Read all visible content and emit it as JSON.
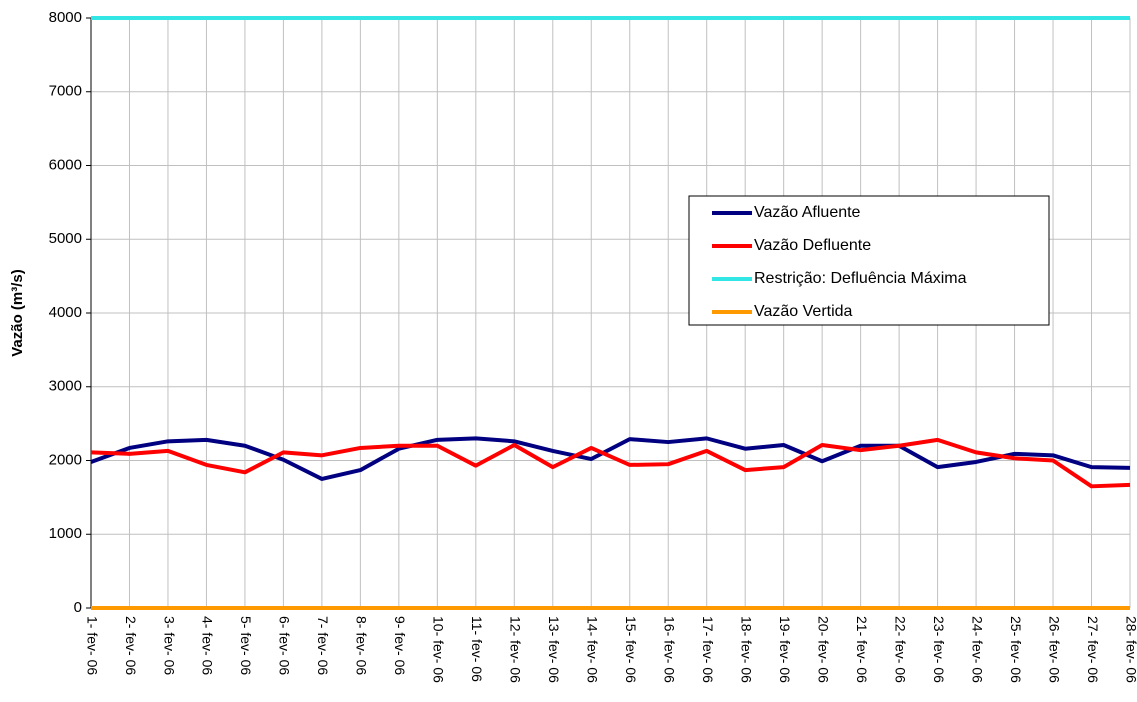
{
  "chart_data": {
    "type": "line",
    "ylabel": "Vazão (m³/s)",
    "categories": [
      "1- fev- 06",
      "2- fev- 06",
      "3- fev- 06",
      "4- fev- 06",
      "5- fev- 06",
      "6- fev- 06",
      "7- fev- 06",
      "8- fev- 06",
      "9- fev- 06",
      "10- fev- 06",
      "11- fev- 06",
      "12- fev- 06",
      "13- fev- 06",
      "14- fev- 06",
      "15- fev- 06",
      "16- fev- 06",
      "17- fev- 06",
      "18- fev- 06",
      "19- fev- 06",
      "20- fev- 06",
      "21- fev- 06",
      "22- fev- 06",
      "23- fev- 06",
      "24- fev- 06",
      "25- fev- 06",
      "26- fev- 06",
      "27- fev- 06",
      "28- fev- 06"
    ],
    "series": [
      {
        "name": "Vazão Afluente",
        "color": "#000080",
        "values": [
          1980,
          2170,
          2260,
          2280,
          2200,
          2010,
          1750,
          1870,
          2160,
          2280,
          2300,
          2260,
          2130,
          2020,
          2290,
          2250,
          2300,
          2160,
          2210,
          1990,
          2200,
          2200,
          1910,
          1980,
          2090,
          2070,
          1910,
          1900
        ]
      },
      {
        "name": "Vazão Defluente",
        "color": "#ff0000",
        "values": [
          2110,
          2090,
          2130,
          1940,
          1840,
          2110,
          2070,
          2170,
          2200,
          2200,
          1930,
          2210,
          1910,
          2170,
          1940,
          1950,
          2130,
          1870,
          1910,
          2210,
          2140,
          2200,
          2280,
          2110,
          2030,
          2000,
          1650,
          1670
        ]
      },
      {
        "name": "Restrição: Defluência Máxima",
        "color": "#33e6e6",
        "values": [
          8000,
          8000,
          8000,
          8000,
          8000,
          8000,
          8000,
          8000,
          8000,
          8000,
          8000,
          8000,
          8000,
          8000,
          8000,
          8000,
          8000,
          8000,
          8000,
          8000,
          8000,
          8000,
          8000,
          8000,
          8000,
          8000,
          8000,
          8000
        ]
      },
      {
        "name": "Vazão Vertida",
        "color": "#ff9900",
        "values": [
          0,
          0,
          0,
          0,
          0,
          0,
          0,
          0,
          0,
          0,
          0,
          0,
          0,
          0,
          0,
          0,
          0,
          0,
          0,
          0,
          0,
          0,
          0,
          0,
          0,
          0,
          0,
          0
        ]
      }
    ],
    "ylim": [
      0,
      8000
    ],
    "yticks": [
      0,
      1000,
      2000,
      3000,
      4000,
      5000,
      6000,
      7000,
      8000
    ],
    "grid": true
  }
}
